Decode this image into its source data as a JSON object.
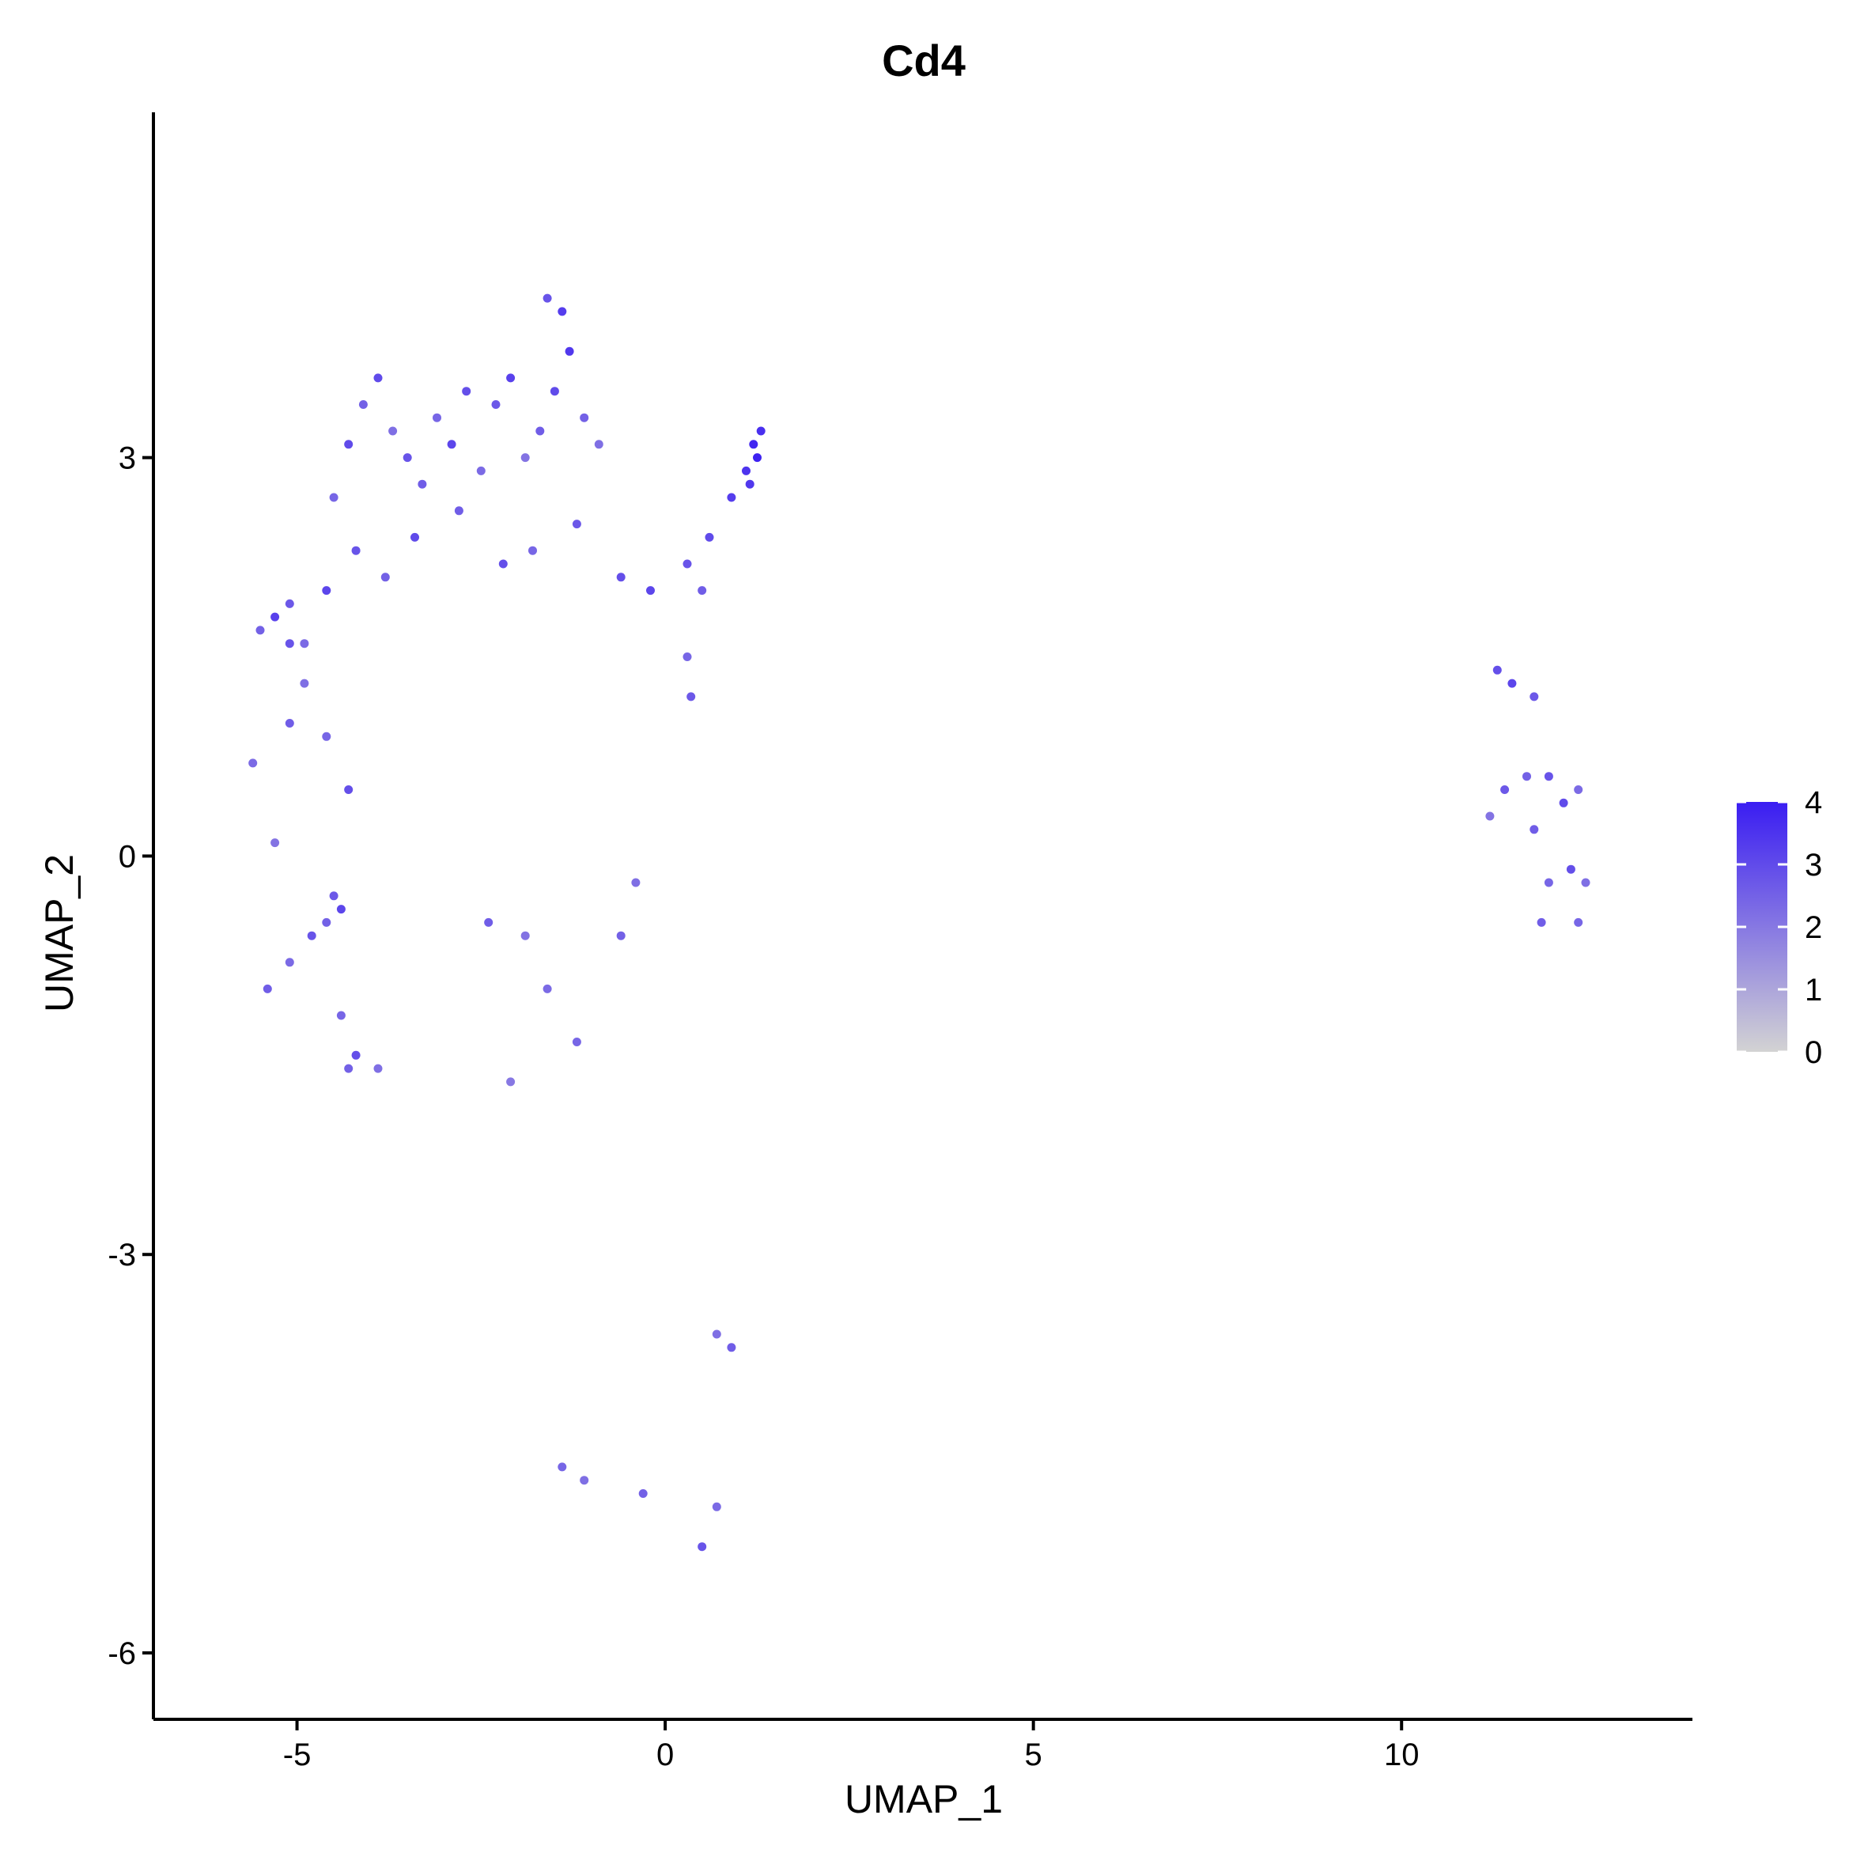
{
  "chart_data": {
    "type": "scatter",
    "title": "Cd4",
    "xlabel": "UMAP_1",
    "ylabel": "UMAP_2",
    "xlim": [
      -6.95,
      13.95
    ],
    "ylim": [
      -6.5,
      5.6
    ],
    "xticks": [
      -5,
      0,
      5,
      10
    ],
    "xtick_labels": [
      "-5",
      "0",
      "5",
      "10"
    ],
    "yticks": [
      -6,
      -3,
      0,
      3
    ],
    "ytick_labels": [
      "-6",
      "-3",
      "0",
      "3"
    ],
    "grid": false,
    "legend_position": "right",
    "color_scale": {
      "title": "",
      "low": 0,
      "high": 4,
      "low_color": "#d3d3d3",
      "high_color": "#3a1df2",
      "ticks": [
        0,
        1,
        2,
        3,
        4
      ],
      "tick_labels": [
        "0",
        "1",
        "2",
        "3",
        "4"
      ]
    },
    "clusters_note_free": true,
    "series": [
      {
        "values": [
          [
            -4.1,
            3.4,
            2.5
          ],
          [
            -3.9,
            3.6,
            3.0
          ],
          [
            -3.7,
            3.2,
            2.2
          ],
          [
            -3.5,
            3.0,
            2.8
          ],
          [
            -3.3,
            2.8,
            2.6
          ],
          [
            -3.1,
            3.3,
            2.4
          ],
          [
            -2.9,
            3.1,
            3.1
          ],
          [
            -2.7,
            3.5,
            2.9
          ],
          [
            -2.5,
            2.9,
            2.3
          ],
          [
            -2.3,
            3.4,
            2.7
          ],
          [
            -2.1,
            3.6,
            3.2
          ],
          [
            -1.9,
            3.0,
            2.1
          ],
          [
            -1.7,
            3.2,
            2.6
          ],
          [
            -1.5,
            3.5,
            3.0
          ],
          [
            -1.4,
            4.1,
            3.3
          ],
          [
            -1.6,
            4.2,
            2.8
          ],
          [
            -1.3,
            3.8,
            3.4
          ],
          [
            -1.1,
            3.3,
            2.5
          ],
          [
            -0.9,
            3.1,
            2.2
          ],
          [
            -4.3,
            3.1,
            3.0
          ],
          [
            -4.5,
            2.7,
            2.4
          ],
          [
            -4.2,
            2.3,
            2.8
          ],
          [
            -4.6,
            2.0,
            3.1
          ],
          [
            -5.1,
            1.9,
            2.7
          ],
          [
            -5.3,
            1.8,
            3.2
          ],
          [
            -4.9,
            1.6,
            2.3
          ],
          [
            -3.8,
            2.1,
            2.5
          ],
          [
            -3.4,
            2.4,
            3.0
          ],
          [
            -2.8,
            2.6,
            2.6
          ],
          [
            -2.2,
            2.2,
            2.9
          ],
          [
            -1.8,
            2.3,
            2.4
          ],
          [
            -1.2,
            2.5,
            2.7
          ],
          [
            -0.6,
            2.1,
            2.9
          ],
          [
            -0.2,
            2.0,
            3.1
          ],
          [
            0.3,
            2.2,
            2.8
          ],
          [
            0.6,
            2.4,
            3.0
          ],
          [
            0.9,
            2.7,
            3.3
          ],
          [
            1.1,
            2.9,
            3.5
          ],
          [
            1.2,
            3.1,
            3.8
          ],
          [
            1.3,
            3.2,
            3.6
          ],
          [
            1.25,
            3.0,
            3.9
          ],
          [
            1.15,
            2.8,
            3.4
          ],
          [
            0.5,
            2.0,
            2.6
          ],
          [
            0.3,
            1.5,
            2.4
          ],
          [
            0.35,
            1.2,
            2.7
          ],
          [
            -4.9,
            1.3,
            2.2
          ],
          [
            -5.1,
            1.0,
            2.6
          ],
          [
            -4.6,
            0.9,
            2.4
          ],
          [
            -4.3,
            0.5,
            2.9
          ],
          [
            -4.5,
            -0.3,
            2.7
          ],
          [
            -4.4,
            -0.4,
            3.1
          ],
          [
            -4.6,
            -0.5,
            2.5
          ],
          [
            -4.8,
            -0.6,
            2.8
          ],
          [
            -5.1,
            -0.8,
            2.3
          ],
          [
            -5.4,
            -1.0,
            2.6
          ],
          [
            -4.4,
            -1.2,
            2.4
          ],
          [
            -4.2,
            -1.5,
            2.9
          ],
          [
            -4.3,
            -1.6,
            2.5
          ],
          [
            -3.9,
            -1.6,
            2.2
          ],
          [
            -1.6,
            -1.0,
            2.3
          ],
          [
            -1.9,
            -0.6,
            2.1
          ],
          [
            -2.4,
            -0.5,
            2.6
          ],
          [
            -0.6,
            -0.6,
            2.5
          ],
          [
            -0.4,
            -0.2,
            2.2
          ],
          [
            -1.2,
            -1.4,
            2.4
          ],
          [
            -2.1,
            -1.7,
            2.0
          ],
          [
            -5.3,
            0.1,
            2.1
          ],
          [
            -5.6,
            0.7,
            2.3
          ],
          [
            -5.1,
            1.6,
            2.8
          ],
          [
            -5.5,
            1.7,
            2.5
          ],
          [
            11.3,
            1.4,
            2.9
          ],
          [
            11.5,
            1.3,
            3.1
          ],
          [
            11.8,
            1.2,
            2.7
          ],
          [
            11.7,
            0.6,
            2.5
          ],
          [
            12.0,
            0.6,
            2.8
          ],
          [
            12.2,
            0.4,
            3.0
          ],
          [
            12.4,
            0.5,
            2.3
          ],
          [
            11.8,
            0.2,
            2.6
          ],
          [
            12.0,
            -0.2,
            2.4
          ],
          [
            12.3,
            -0.1,
            2.9
          ],
          [
            12.5,
            -0.2,
            2.2
          ],
          [
            11.4,
            0.5,
            2.7
          ],
          [
            11.2,
            0.3,
            2.1
          ],
          [
            11.9,
            -0.5,
            2.6
          ],
          [
            12.4,
            -0.5,
            2.4
          ],
          [
            -1.4,
            -4.6,
            2.4
          ],
          [
            -1.1,
            -4.7,
            2.2
          ],
          [
            -0.3,
            -4.8,
            2.5
          ],
          [
            0.5,
            -5.2,
            2.8
          ],
          [
            0.7,
            -4.9,
            2.3
          ],
          [
            0.9,
            -3.7,
            2.6
          ],
          [
            0.7,
            -3.6,
            2.2
          ]
        ]
      }
    ]
  }
}
